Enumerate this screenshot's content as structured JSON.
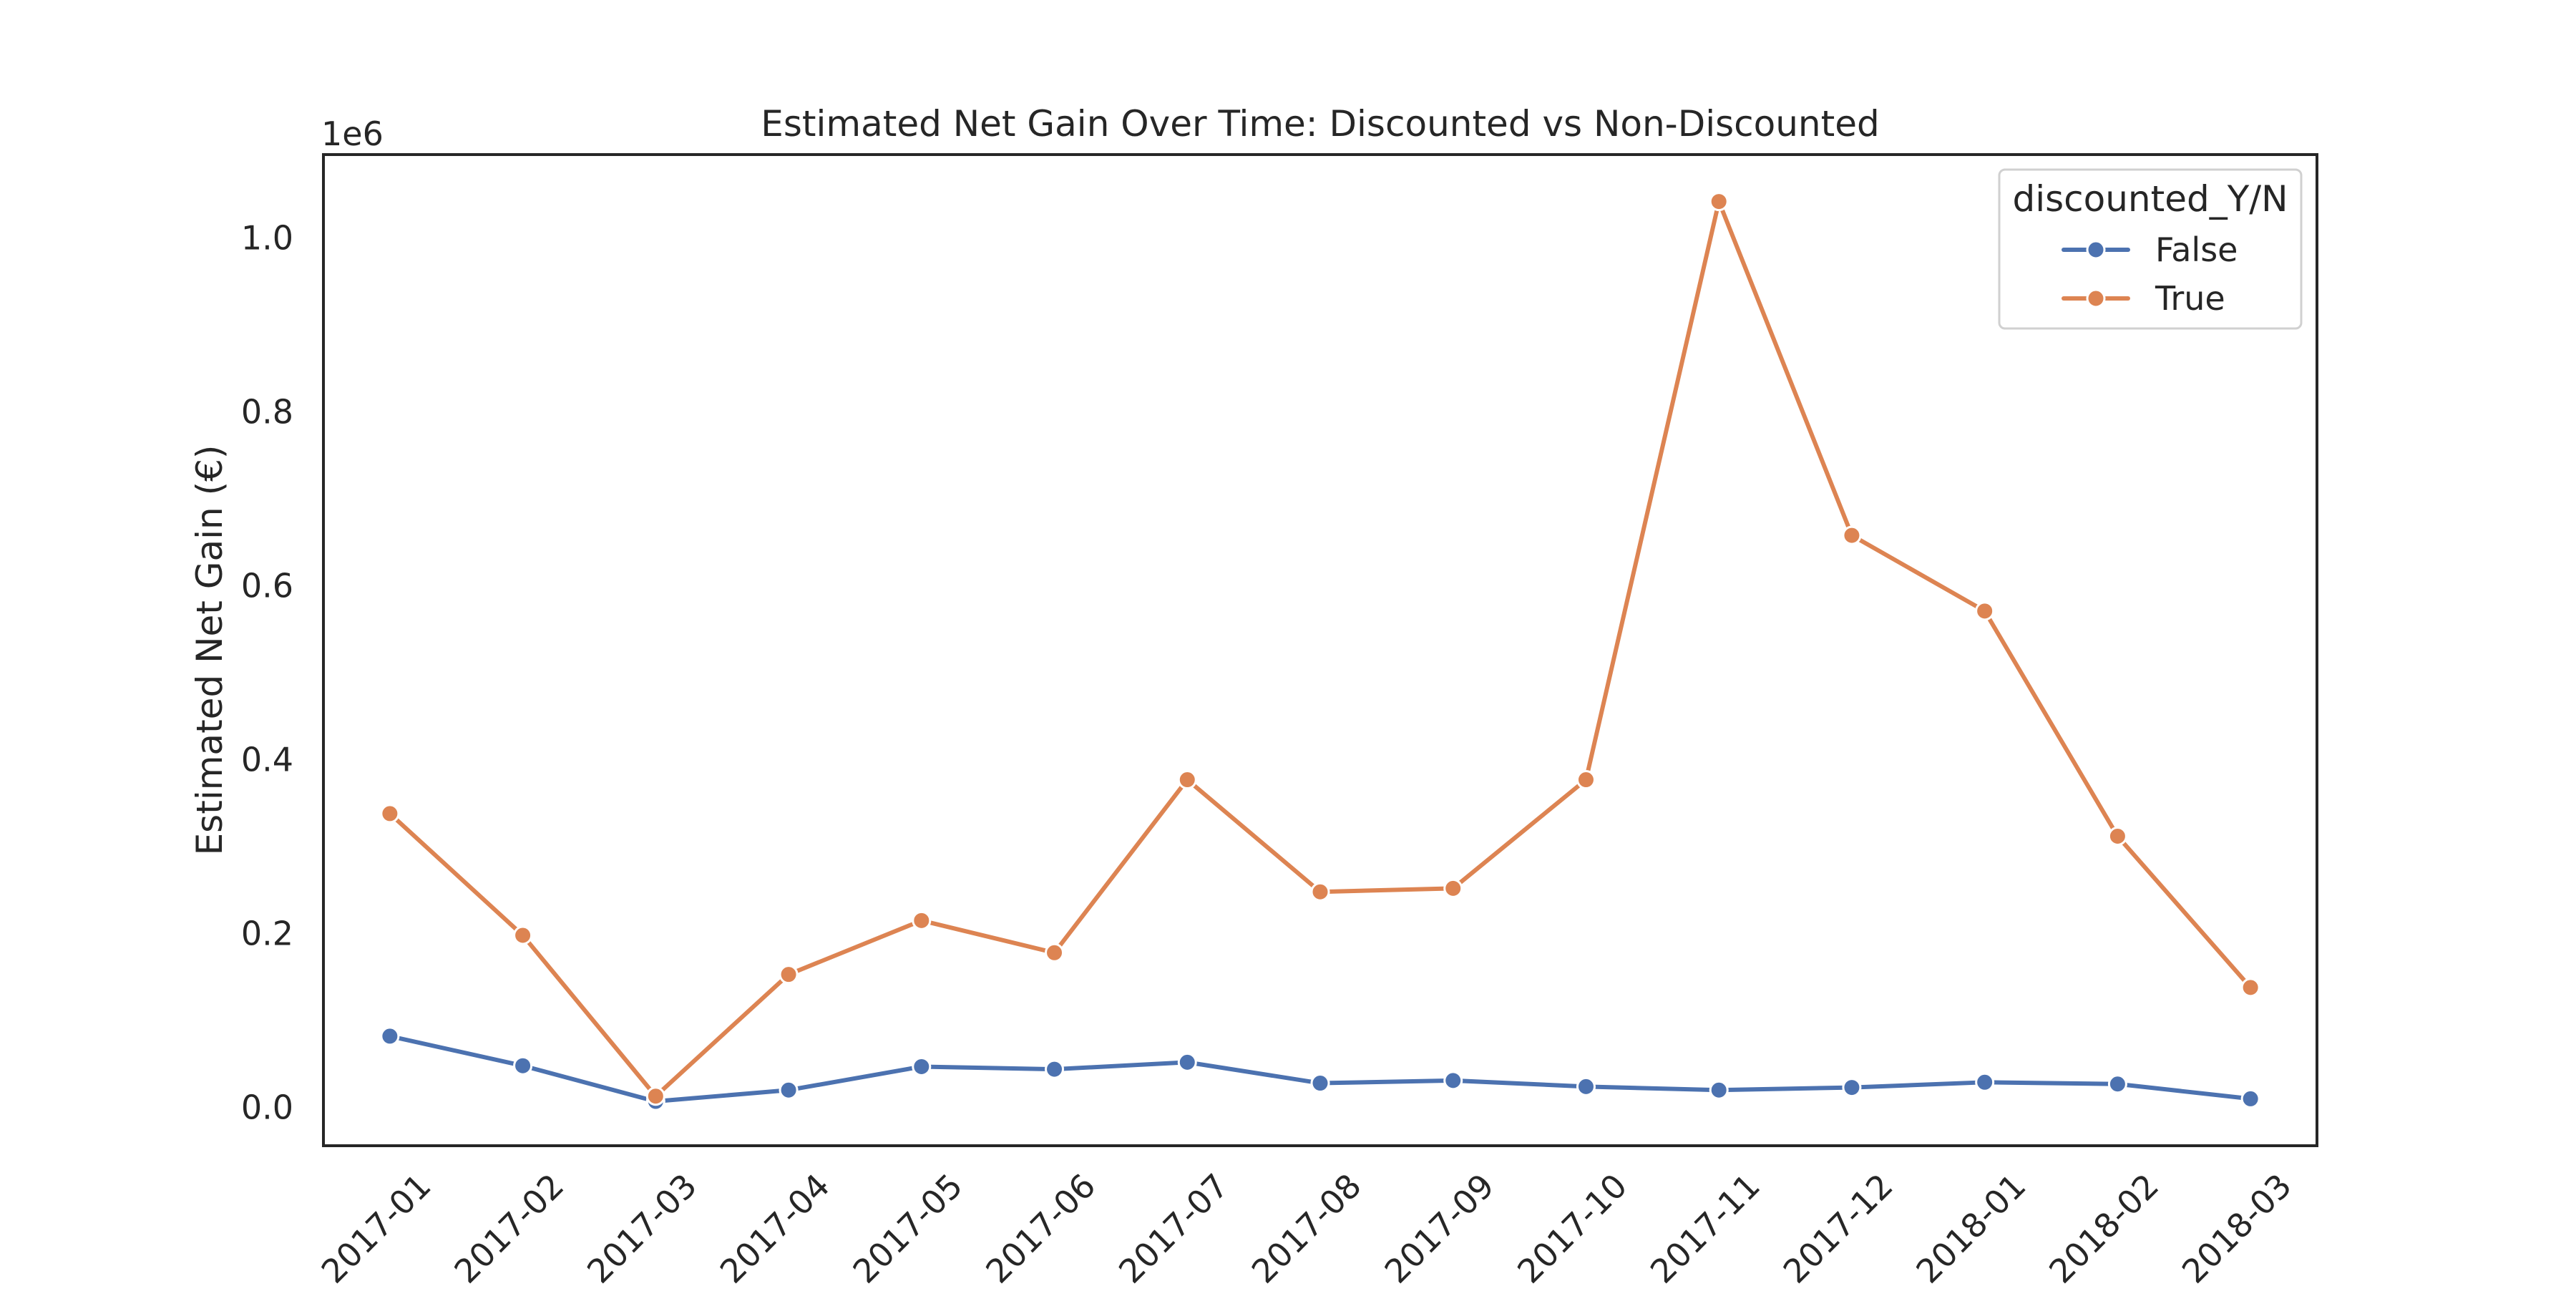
{
  "chart_data": {
    "type": "line",
    "title": "Estimated Net Gain Over Time: Discounted vs Non-Discounted",
    "xlabel": "",
    "ylabel": "Estimated Net Gain (€)",
    "y_offset_text": "1e6",
    "x": [
      "2017-01",
      "2017-02",
      "2017-03",
      "2017-04",
      "2017-05",
      "2017-06",
      "2017-07",
      "2017-08",
      "2017-09",
      "2017-10",
      "2017-11",
      "2017-12",
      "2018-01",
      "2018-02",
      "2018-03"
    ],
    "y_ticks": [
      0.0,
      0.2,
      0.4,
      0.6,
      0.8,
      1.0
    ],
    "y_tick_labels": [
      "0.0",
      "0.2",
      "0.4",
      "0.6",
      "0.8",
      "1.0"
    ],
    "y_tick_scale": 1000000,
    "ylim": [
      -44000,
      1096000
    ],
    "grid": false,
    "legend": {
      "title": "discounted_Y/N",
      "placement": "top-right"
    },
    "series": [
      {
        "name": "False",
        "color": "#4c72b0",
        "values": [
          82000,
          48000,
          7000,
          20000,
          47000,
          44000,
          52000,
          28000,
          31000,
          24000,
          20000,
          23000,
          29000,
          27000,
          10000
        ]
      },
      {
        "name": "True",
        "color": "#dd8452",
        "values": [
          338000,
          198000,
          13000,
          153000,
          215000,
          178000,
          377000,
          248000,
          252000,
          377000,
          1042000,
          658000,
          571000,
          312000,
          138000
        ]
      }
    ]
  }
}
